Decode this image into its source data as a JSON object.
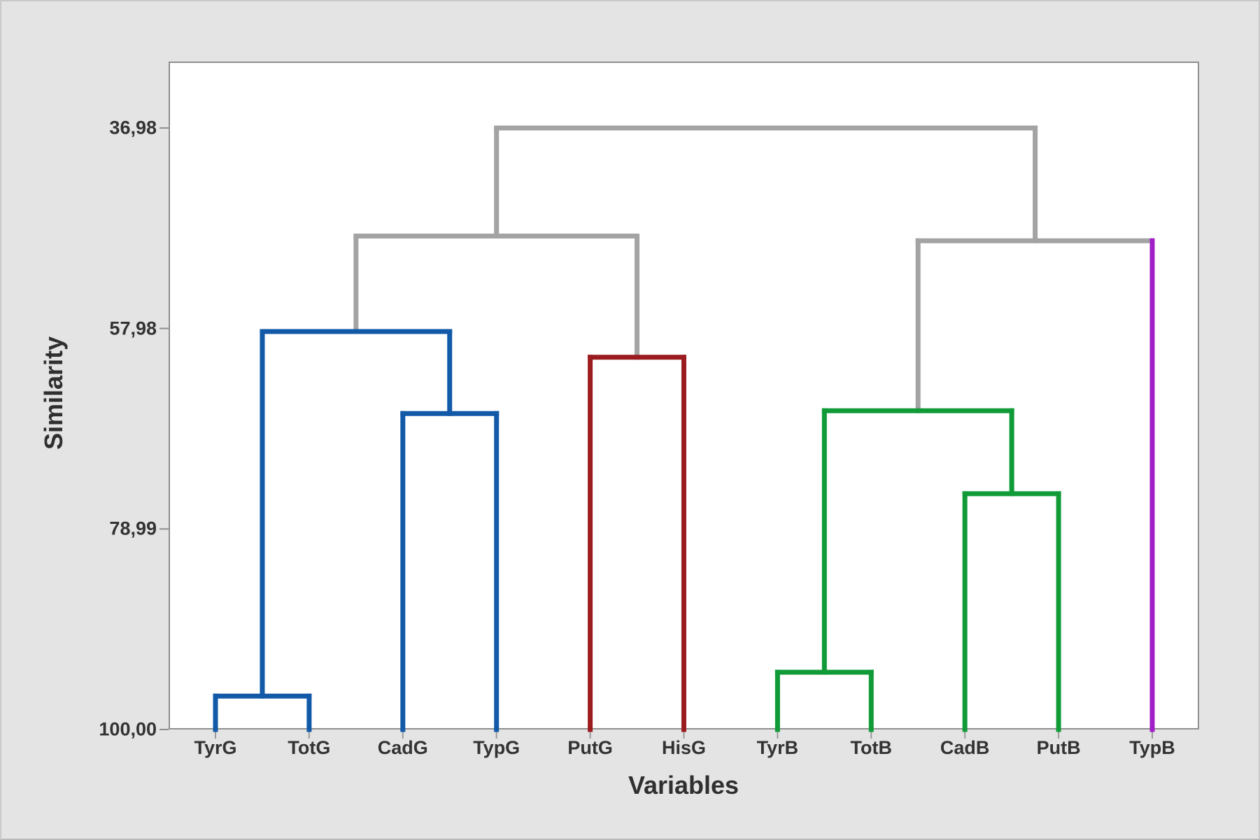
{
  "chart_data": {
    "type": "dendrogram",
    "xlabel": "Variables",
    "ylabel": "Similarity",
    "y_axis": {
      "tick_labels": [
        "36,98",
        "57,98",
        "78,99",
        "100,00"
      ],
      "tick_values": [
        36.98,
        57.98,
        78.99,
        100.0
      ],
      "orientation": "descending-similarity-top",
      "ylim_top": 36.98,
      "ylim_bottom": 100.0
    },
    "leaves": [
      "TyrG",
      "TotG",
      "CadG",
      "TypG",
      "PutG",
      "HisG",
      "TyrB",
      "TotB",
      "CadB",
      "PutB",
      "TypB"
    ],
    "merges": [
      {
        "id": "m1",
        "a": "TyrG",
        "b": "TotG",
        "similarity": 96.5,
        "color": "blue"
      },
      {
        "id": "m2",
        "a": "CadG",
        "b": "TypG",
        "similarity": 66.9,
        "color": "blue"
      },
      {
        "id": "m3",
        "a": "m1",
        "b": "m2",
        "similarity": 58.3,
        "color": "blue"
      },
      {
        "id": "m4",
        "a": "PutG",
        "b": "HisG",
        "similarity": 61.0,
        "color": "red"
      },
      {
        "id": "m5",
        "a": "m3",
        "b": "m4",
        "similarity": 48.3,
        "color": "gray"
      },
      {
        "id": "m6",
        "a": "TyrB",
        "b": "TotB",
        "similarity": 94.0,
        "color": "green"
      },
      {
        "id": "m7",
        "a": "CadB",
        "b": "PutB",
        "similarity": 75.3,
        "color": "green"
      },
      {
        "id": "m8",
        "a": "m6",
        "b": "m7",
        "similarity": 66.6,
        "color": "green"
      },
      {
        "id": "m9",
        "a": "m8",
        "b": "TypB",
        "similarity": 48.8,
        "color": "gray",
        "riser_b_color": "purple"
      },
      {
        "id": "m10",
        "a": "m5",
        "b": "m9",
        "similarity": 36.98,
        "color": "gray"
      }
    ],
    "cluster_colors": {
      "blue": "#1259a8",
      "red": "#9b1c1f",
      "green": "#119b38",
      "purple": "#a01ec8",
      "gray": "#a3a3a3"
    },
    "axis_color": "#8f8f8f",
    "legend": "none",
    "grid": "off"
  }
}
